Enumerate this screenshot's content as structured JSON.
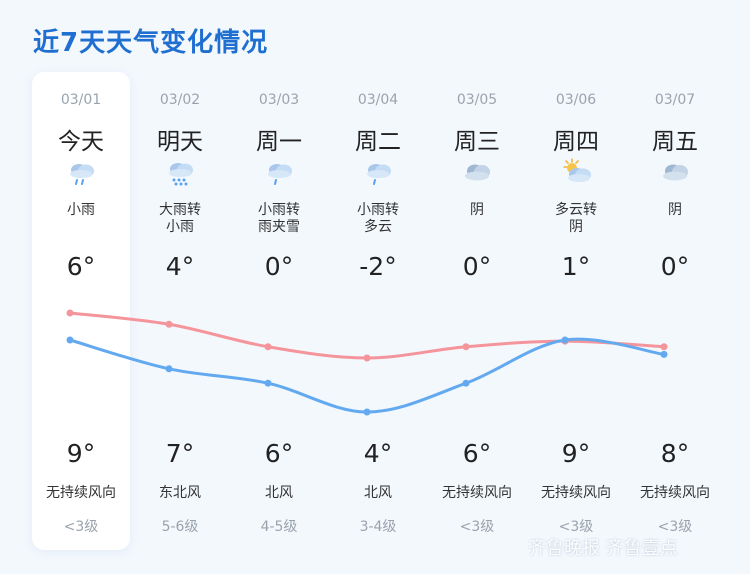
{
  "title": "近7天天气变化情况",
  "days": [
    {
      "date": "03/01",
      "name": "今天",
      "icon": "light-rain-icon",
      "cond": "小雨",
      "high": "6°",
      "low": "9°",
      "wind": "无持续风向",
      "level": "<3级",
      "high_v": 6,
      "low_v": 9
    },
    {
      "date": "03/02",
      "name": "明天",
      "icon": "heavy-rain-icon",
      "cond": "大雨转\n小雨",
      "high": "4°",
      "low": "7°",
      "wind": "东北风",
      "level": "5-6级",
      "high_v": 4,
      "low_v": 7
    },
    {
      "date": "03/03",
      "name": "周一",
      "icon": "rain-icon",
      "cond": "小雨转\n雨夹雪",
      "high": "0°",
      "low": "6°",
      "wind": "北风",
      "level": "4-5级",
      "high_v": 0,
      "low_v": 6
    },
    {
      "date": "03/04",
      "name": "周二",
      "icon": "rain-icon",
      "cond": "小雨转\n多云",
      "high": "-2°",
      "low": "4°",
      "wind": "北风",
      "level": "3-4级",
      "high_v": -2,
      "low_v": 4
    },
    {
      "date": "03/05",
      "name": "周三",
      "icon": "overcast-icon",
      "cond": "阴",
      "high": "0°",
      "low": "6°",
      "wind": "无持续风向",
      "level": "<3级",
      "high_v": 0,
      "low_v": 6
    },
    {
      "date": "03/06",
      "name": "周四",
      "icon": "partly-cloudy-icon",
      "cond": "多云转\n阴",
      "high": "1°",
      "low": "9°",
      "wind": "无持续风向",
      "level": "<3级",
      "high_v": 1,
      "low_v": 9
    },
    {
      "date": "03/07",
      "name": "周五",
      "icon": "overcast-icon",
      "cond": "阴",
      "high": "0°",
      "low": "8°",
      "wind": "无持续风向",
      "level": "<3级",
      "high_v": 0,
      "low_v": 8
    }
  ],
  "colors": {
    "high_line": "#f4959b",
    "low_line": "#63a9ef",
    "title": "#1f6fd1"
  },
  "watermark": "齐鲁晚报 齐鲁壹点"
}
